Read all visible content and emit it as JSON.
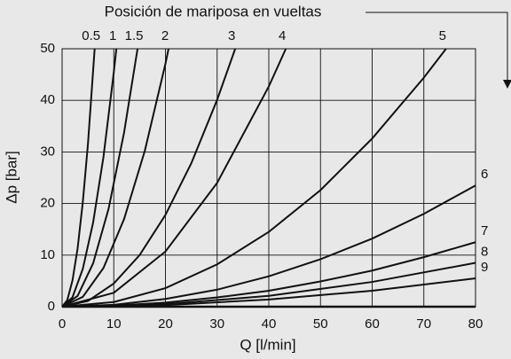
{
  "chart_data": {
    "type": "line",
    "title": "Posición de mariposa en vueltas",
    "x_label": "Q [l/min]",
    "y_label": "Δp [bar]",
    "xlim": [
      0,
      80
    ],
    "xticks": [
      0,
      10,
      20,
      30,
      40,
      50,
      60,
      70,
      80
    ],
    "ylim": [
      0,
      50
    ],
    "yticks": [
      0,
      10,
      20,
      30,
      40,
      50
    ],
    "grid": true,
    "color": "#111111",
    "series": [
      {
        "name": "0.5",
        "color": "#111111",
        "x": [
          0,
          1,
          2,
          3,
          4,
          5,
          6.3
        ],
        "values": [
          0,
          1.26,
          5.04,
          11.3,
          20.2,
          31.5,
          50
        ]
      },
      {
        "name": "1",
        "color": "#111111",
        "x": [
          0,
          2,
          4,
          6,
          8,
          10,
          10.5
        ],
        "values": [
          0,
          1.8,
          7.3,
          16.3,
          29,
          45.4,
          50
        ]
      },
      {
        "name": "1.5",
        "color": "#111111",
        "x": [
          0,
          3,
          6,
          9,
          12,
          14.6
        ],
        "values": [
          0,
          2.1,
          8.4,
          19,
          33.8,
          50
        ]
      },
      {
        "name": "2",
        "color": "#111111",
        "x": [
          0,
          4,
          8,
          12,
          16,
          20,
          20.6
        ],
        "values": [
          0,
          1.9,
          7.5,
          17,
          30.2,
          47.1,
          50
        ]
      },
      {
        "name": "3",
        "color": "#111111",
        "x": [
          0,
          5,
          10,
          15,
          20,
          25,
          30,
          33.5
        ],
        "values": [
          0,
          1.1,
          4.5,
          10,
          17.8,
          27.8,
          40.1,
          50
        ]
      },
      {
        "name": "4",
        "color": "#111111",
        "x": [
          0,
          10,
          20,
          30,
          40,
          43.3
        ],
        "values": [
          0,
          2.7,
          10.7,
          24,
          42.7,
          50
        ]
      },
      {
        "name": "5",
        "color": "#111111",
        "x": [
          0,
          10,
          20,
          30,
          40,
          50,
          60,
          70,
          74.3
        ],
        "values": [
          0,
          0.9,
          3.6,
          8.2,
          14.5,
          22.6,
          32.6,
          44.4,
          50
        ]
      },
      {
        "name": "6",
        "color": "#111111",
        "x": [
          0,
          10,
          20,
          30,
          40,
          50,
          60,
          70,
          80
        ],
        "values": [
          0,
          0.37,
          1.5,
          3.3,
          5.9,
          9.2,
          13.2,
          18,
          23.5
        ]
      },
      {
        "name": "7",
        "color": "#111111",
        "x": [
          0,
          10,
          20,
          30,
          40,
          50,
          60,
          70,
          80
        ],
        "values": [
          0,
          0.2,
          0.8,
          1.8,
          3.1,
          4.9,
          7,
          9.6,
          12.5
        ]
      },
      {
        "name": "8",
        "color": "#111111",
        "x": [
          0,
          20,
          40,
          60,
          80
        ],
        "values": [
          0,
          0.5,
          2.1,
          4.8,
          8.5
        ]
      },
      {
        "name": "9",
        "color": "#111111",
        "x": [
          0,
          20,
          40,
          60,
          80
        ],
        "values": [
          0,
          0.3,
          1.4,
          3.1,
          5.5
        ]
      }
    ]
  }
}
